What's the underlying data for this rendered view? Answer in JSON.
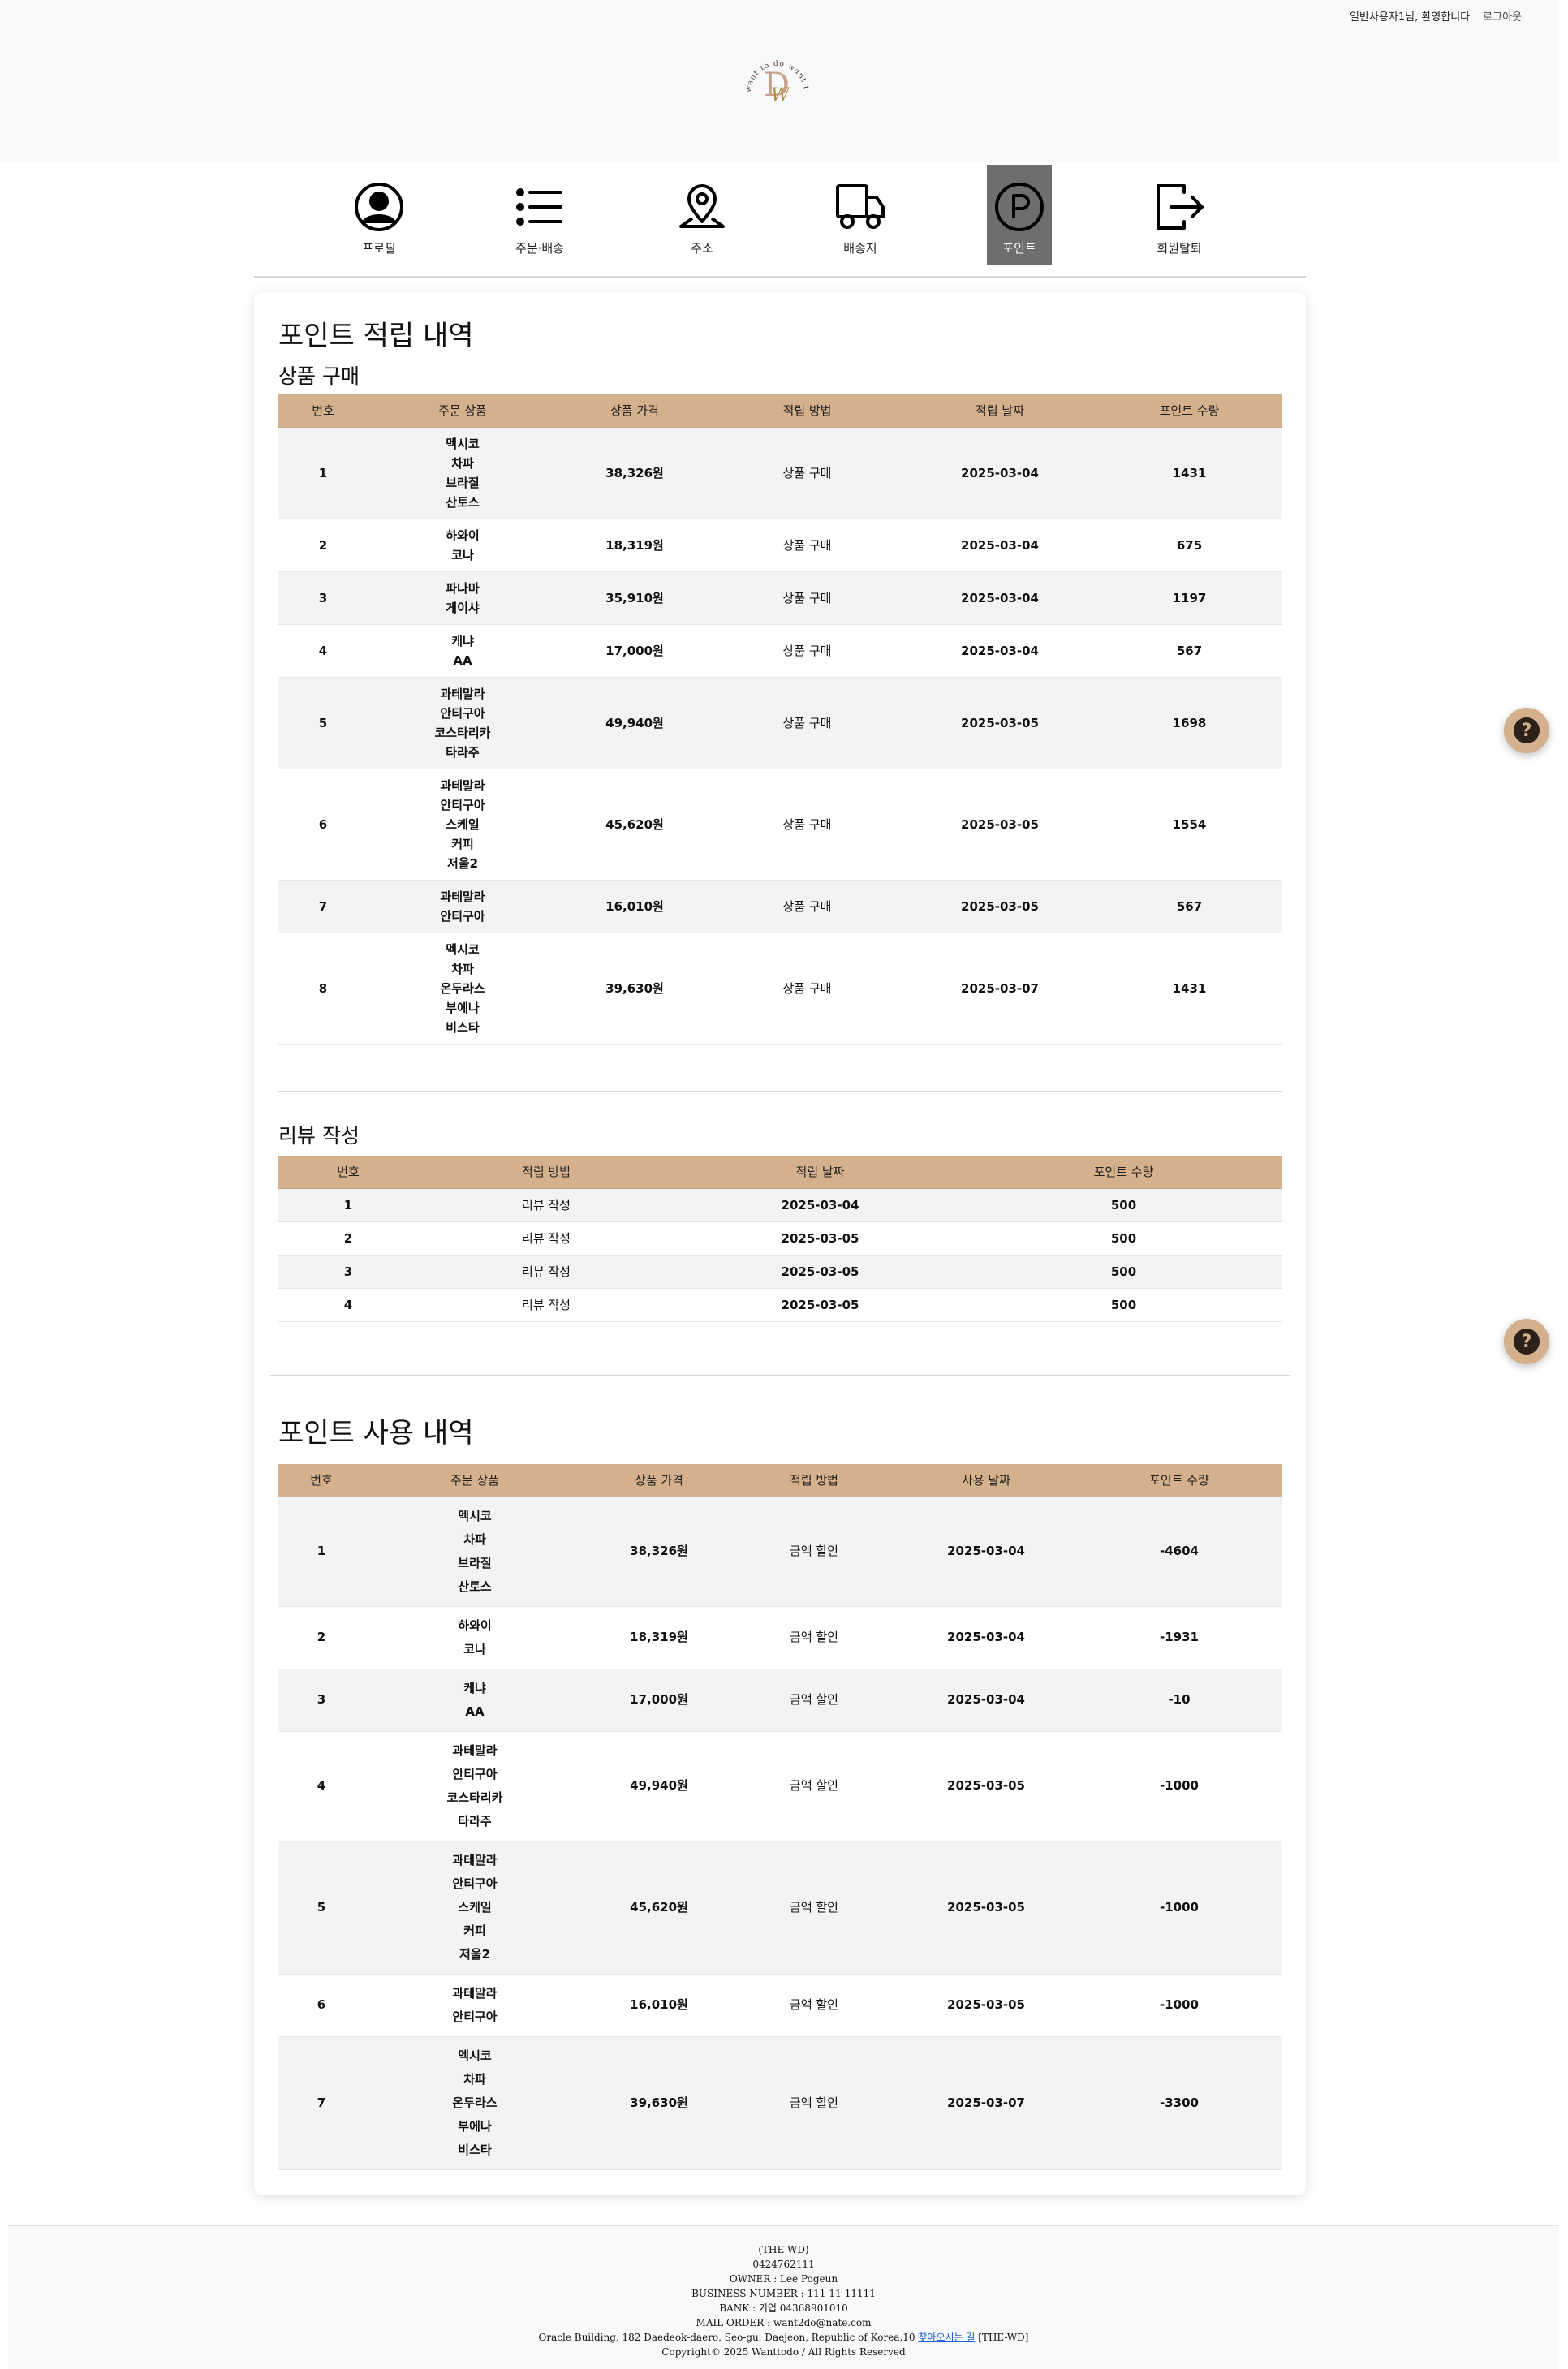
{
  "header": {
    "greeting": "일반사용자1님, 환영합니다",
    "logout": "로그아웃",
    "logo_text": "want to do want to do"
  },
  "nav": {
    "items": [
      {
        "label": "프로필",
        "icon": "person-circle-icon"
      },
      {
        "label": "주문·배송",
        "icon": "list-icon"
      },
      {
        "label": "주소",
        "icon": "map-pin-icon"
      },
      {
        "label": "배송지",
        "icon": "truck-icon"
      },
      {
        "label": "포인트",
        "icon": "point-circle-icon",
        "active": true
      },
      {
        "label": "회원탈퇴",
        "icon": "logout-icon"
      }
    ]
  },
  "earn": {
    "title": "포인트 적립 내역",
    "purchase": {
      "title": "상품 구매",
      "headers": [
        "번호",
        "주문 상품",
        "상품 가격",
        "적립 방법",
        "적립 날짜",
        "포인트 수량"
      ],
      "rows": [
        {
          "no": "1",
          "product": [
            "멕시코",
            "차파",
            "브라질",
            "산토스"
          ],
          "price": "38,326원",
          "method": "상품 구매",
          "date": "2025-03-04",
          "points": "1431"
        },
        {
          "no": "2",
          "product": [
            "하와이",
            "코나"
          ],
          "price": "18,319원",
          "method": "상품 구매",
          "date": "2025-03-04",
          "points": "675"
        },
        {
          "no": "3",
          "product": [
            "파나마",
            "게이샤"
          ],
          "price": "35,910원",
          "method": "상품 구매",
          "date": "2025-03-04",
          "points": "1197"
        },
        {
          "no": "4",
          "product": [
            "케냐",
            "AA"
          ],
          "price": "17,000원",
          "method": "상품 구매",
          "date": "2025-03-04",
          "points": "567"
        },
        {
          "no": "5",
          "product": [
            "과테말라",
            "안티구아",
            "코스타리카",
            "타라주"
          ],
          "price": "49,940원",
          "method": "상품 구매",
          "date": "2025-03-05",
          "points": "1698"
        },
        {
          "no": "6",
          "product": [
            "과테말라",
            "안티구아",
            "스케일",
            "커피",
            "저울2"
          ],
          "price": "45,620원",
          "method": "상품 구매",
          "date": "2025-03-05",
          "points": "1554"
        },
        {
          "no": "7",
          "product": [
            "과테말라",
            "안티구아"
          ],
          "price": "16,010원",
          "method": "상품 구매",
          "date": "2025-03-05",
          "points": "567"
        },
        {
          "no": "8",
          "product": [
            "멕시코",
            "차파",
            "온두라스",
            "부에나",
            "비스타"
          ],
          "price": "39,630원",
          "method": "상품 구매",
          "date": "2025-03-07",
          "points": "1431"
        }
      ]
    },
    "review": {
      "title": "리뷰 작성",
      "headers": [
        "번호",
        "적립 방법",
        "적립 날짜",
        "포인트 수량"
      ],
      "rows": [
        {
          "no": "1",
          "method": "리뷰 작성",
          "date": "2025-03-04",
          "points": "500"
        },
        {
          "no": "2",
          "method": "리뷰 작성",
          "date": "2025-03-05",
          "points": "500"
        },
        {
          "no": "3",
          "method": "리뷰 작성",
          "date": "2025-03-05",
          "points": "500"
        },
        {
          "no": "4",
          "method": "리뷰 작성",
          "date": "2025-03-05",
          "points": "500"
        }
      ]
    }
  },
  "use": {
    "title": "포인트 사용 내역",
    "headers": [
      "번호",
      "주문 상품",
      "상품 가격",
      "적립 방법",
      "사용 날짜",
      "포인트 수량"
    ],
    "rows": [
      {
        "no": "1",
        "product": [
          "멕시코",
          "차파",
          "브라질",
          "산토스"
        ],
        "price": "38,326원",
        "method": "금액 할인",
        "date": "2025-03-04",
        "points": "-4604"
      },
      {
        "no": "2",
        "product": [
          "하와이",
          "코나"
        ],
        "price": "18,319원",
        "method": "금액 할인",
        "date": "2025-03-04",
        "points": "-1931"
      },
      {
        "no": "3",
        "product": [
          "케냐",
          "AA"
        ],
        "price": "17,000원",
        "method": "금액 할인",
        "date": "2025-03-04",
        "points": "-10"
      },
      {
        "no": "4",
        "product": [
          "과테말라",
          "안티구아",
          "코스타리카",
          "타라주"
        ],
        "price": "49,940원",
        "method": "금액 할인",
        "date": "2025-03-05",
        "points": "-1000"
      },
      {
        "no": "5",
        "product": [
          "과테말라",
          "안티구아",
          "스케일",
          "커피",
          "저울2"
        ],
        "price": "45,620원",
        "method": "금액 할인",
        "date": "2025-03-05",
        "points": "-1000"
      },
      {
        "no": "6",
        "product": [
          "과테말라",
          "안티구아"
        ],
        "price": "16,010원",
        "method": "금액 할인",
        "date": "2025-03-05",
        "points": "-1000"
      },
      {
        "no": "7",
        "product": [
          "멕시코",
          "차파",
          "온두라스",
          "부에나",
          "비스타"
        ],
        "price": "39,630원",
        "method": "금액 할인",
        "date": "2025-03-07",
        "points": "-3300"
      }
    ]
  },
  "footer": {
    "company": "(THE WD)",
    "phone": "0424762111",
    "owner": "OWNER : Lee Pogeun",
    "business": "BUSINESS NUMBER : 111-11-11111",
    "bank": "BANK : 기업 04368901010",
    "mail": "MAIL ORDER : want2do@nate.com",
    "address": "Oracle Building, 182 Daedeok-daero, Seo-gu, Daejeon, Republic of Korea,10",
    "map_link": "찾아오시는 길",
    "address_suffix": "[THE-WD]",
    "copyright": "Copyright© 2025 Wanttodo / All Rights Reserved"
  },
  "help_icon": "question-icon",
  "colors": {
    "accent": "#d4b08c",
    "active_nav": "#6e6e6e",
    "link": "#1a5fd0"
  }
}
